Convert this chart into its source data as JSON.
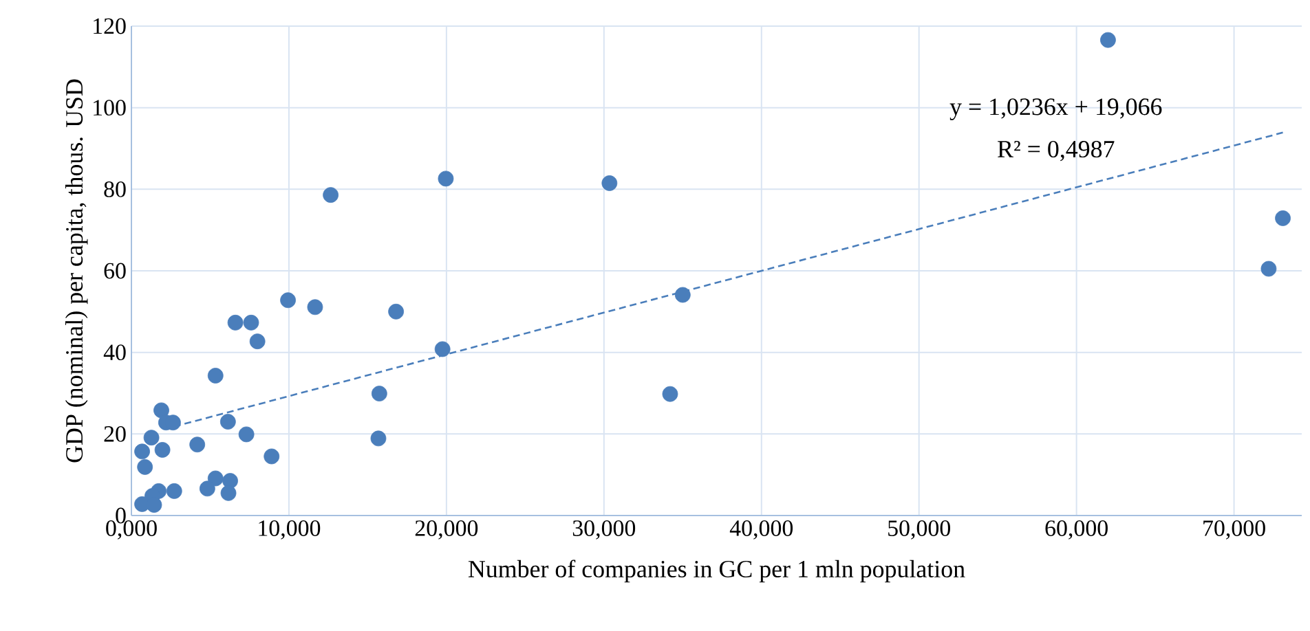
{
  "chart_data": {
    "type": "scatter",
    "xlabel": "Number of companies in GC per 1 mln population",
    "ylabel": "GDP (nominal) per capita, thous. USD",
    "xlim": [
      0,
      74.3
    ],
    "ylim": [
      0,
      120
    ],
    "xticks": [
      {
        "value": 0,
        "label": "0,000"
      },
      {
        "value": 10,
        "label": "10,000"
      },
      {
        "value": 20,
        "label": "20,000"
      },
      {
        "value": 30,
        "label": "30,000"
      },
      {
        "value": 40,
        "label": "40,000"
      },
      {
        "value": 50,
        "label": "50,000"
      },
      {
        "value": 60,
        "label": "60,000"
      },
      {
        "value": 70,
        "label": "70,000"
      }
    ],
    "yticks": [
      0,
      20,
      40,
      60,
      80,
      100,
      120
    ],
    "grid": true,
    "annotations": [
      "y = 1,0236x + 19,066",
      "R² = 0,4987"
    ],
    "series": [
      {
        "marker": "circle",
        "color": "#4a7ebb",
        "x": [
          62.0,
          19.96,
          30.35,
          73.1,
          72.2,
          35.0,
          19.75,
          34.2,
          12.65,
          9.94,
          11.66,
          16.8,
          6.6,
          7.6,
          8.0,
          5.34,
          15.74,
          15.68,
          1.9,
          2.2,
          2.64,
          6.13,
          7.3,
          1.27,
          4.18,
          0.68,
          1.97,
          8.9,
          0.86,
          5.34,
          6.27,
          4.82,
          6.16,
          2.72,
          1.73,
          1.33,
          0.68,
          1.44
        ],
        "values": [
          116.6,
          82.6,
          81.5,
          72.9,
          60.5,
          54.1,
          40.8,
          29.8,
          78.6,
          52.8,
          51.1,
          50.0,
          47.3,
          47.3,
          42.7,
          34.3,
          29.9,
          18.9,
          25.8,
          22.8,
          22.8,
          23.0,
          19.9,
          19.1,
          17.4,
          15.7,
          16.1,
          14.5,
          11.9,
          9.1,
          8.5,
          6.6,
          5.5,
          6.0,
          6.0,
          4.8,
          2.8,
          2.6
        ]
      },
      {
        "type": "line",
        "marker": "none",
        "color": "#4a7ebb",
        "line_style": "dashed",
        "x": [
          2.7,
          73.1
        ],
        "values": [
          21.8,
          93.9
        ]
      }
    ]
  }
}
